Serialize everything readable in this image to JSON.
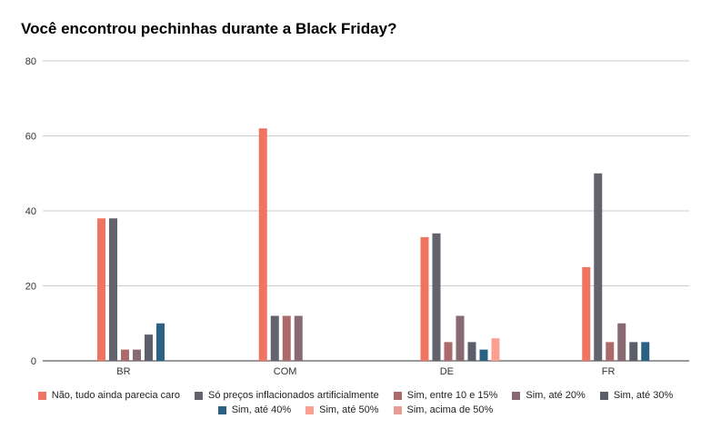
{
  "chart_data": {
    "type": "bar",
    "title": "Você encontrou pechinhas durante a Black Friday?",
    "categories": [
      "BR",
      "COM",
      "DE",
      "FR"
    ],
    "ylim": [
      0,
      80
    ],
    "yticks": [
      "0",
      "20",
      "40",
      "60",
      "80"
    ],
    "grid": true,
    "legend_position": "bottom",
    "series": [
      {
        "name": "Não, tudo ainda parecia caro",
        "color": "#f07462",
        "values": [
          38,
          62,
          33,
          25
        ]
      },
      {
        "name": "Só preços inflacionados artificialmente",
        "color": "#62636d",
        "values": [
          38,
          12,
          34,
          50
        ]
      },
      {
        "name": "Sim, entre 10 e 15%",
        "color": "#ac6a6a",
        "values": [
          3,
          12,
          5,
          5
        ]
      },
      {
        "name": "Sim, até 20%",
        "color": "#876a72",
        "values": [
          3,
          12,
          12,
          10
        ]
      },
      {
        "name": "Sim, até 30%",
        "color": "#5c5f6a",
        "values": [
          7,
          null,
          5,
          5
        ]
      },
      {
        "name": "Sim, até 40%",
        "color": "#2b6283",
        "values": [
          10,
          null,
          3,
          5
        ]
      },
      {
        "name": "Sim, até 50%",
        "color": "#fb9f93",
        "values": [
          null,
          null,
          6,
          null
        ]
      },
      {
        "name": "Sim, acima de 50%",
        "color": "#e89c95",
        "values": [
          null,
          null,
          null,
          null
        ]
      }
    ]
  }
}
